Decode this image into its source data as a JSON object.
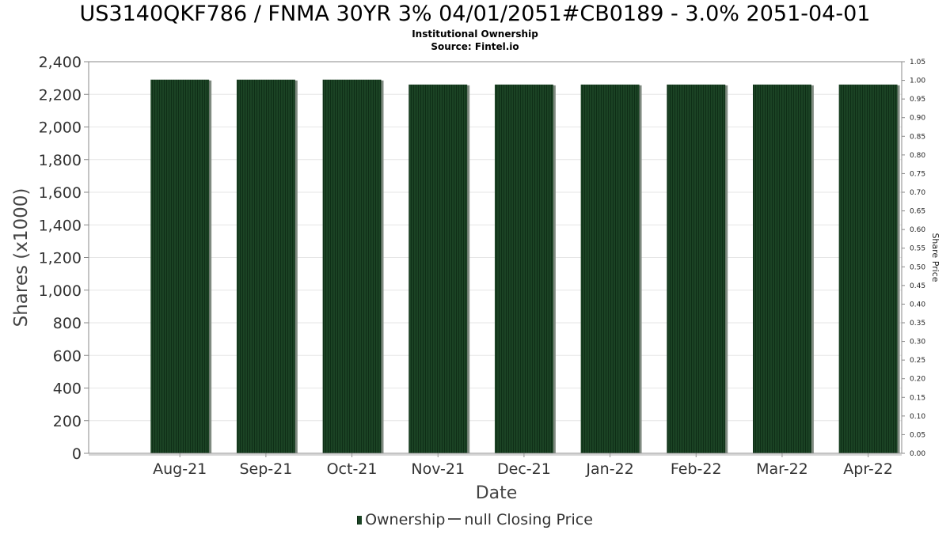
{
  "header": {
    "title": "US3140QKF786 / FNMA 30YR 3% 04/01/2051#CB0189 - 3.0% 2051-04-01",
    "subtitle": "Institutional Ownership",
    "source": "Source: Fintel.io"
  },
  "legend": {
    "ownership_label": "Ownership",
    "price_label": "null Closing Price"
  },
  "colors": {
    "bar": "#1b4324",
    "bar_stripe": "#0f2e17",
    "bar_shadow": "#7f8a80",
    "grid": "#e6e6e6",
    "axis": "#888888"
  },
  "chart_data": {
    "type": "bar",
    "categories": [
      "Aug-21",
      "Sep-21",
      "Oct-21",
      "Nov-21",
      "Dec-21",
      "Jan-22",
      "Feb-22",
      "Mar-22",
      "Apr-22"
    ],
    "series": [
      {
        "name": "Ownership",
        "values": [
          2290,
          2290,
          2290,
          2260,
          2260,
          2260,
          2260,
          2260,
          2260
        ]
      }
    ],
    "xlabel": "Date",
    "ylabel": "Shares (x1000)",
    "ylim": [
      0,
      2400
    ],
    "yticks": [
      "0",
      "200",
      "400",
      "600",
      "800",
      "1,000",
      "1,200",
      "1,400",
      "1,600",
      "1,800",
      "2,000",
      "2,200",
      "2,400"
    ],
    "y2label": "Share Price",
    "y2lim": [
      0,
      1.05
    ],
    "y2ticks": [
      "0.00",
      "0.05",
      "0.10",
      "0.15",
      "0.20",
      "0.25",
      "0.30",
      "0.35",
      "0.40",
      "0.45",
      "0.50",
      "0.55",
      "0.60",
      "0.65",
      "0.70",
      "0.75",
      "0.80",
      "0.85",
      "0.90",
      "0.95",
      "1.00",
      "1.05"
    ],
    "grid": true,
    "legend_position": "bottom"
  }
}
